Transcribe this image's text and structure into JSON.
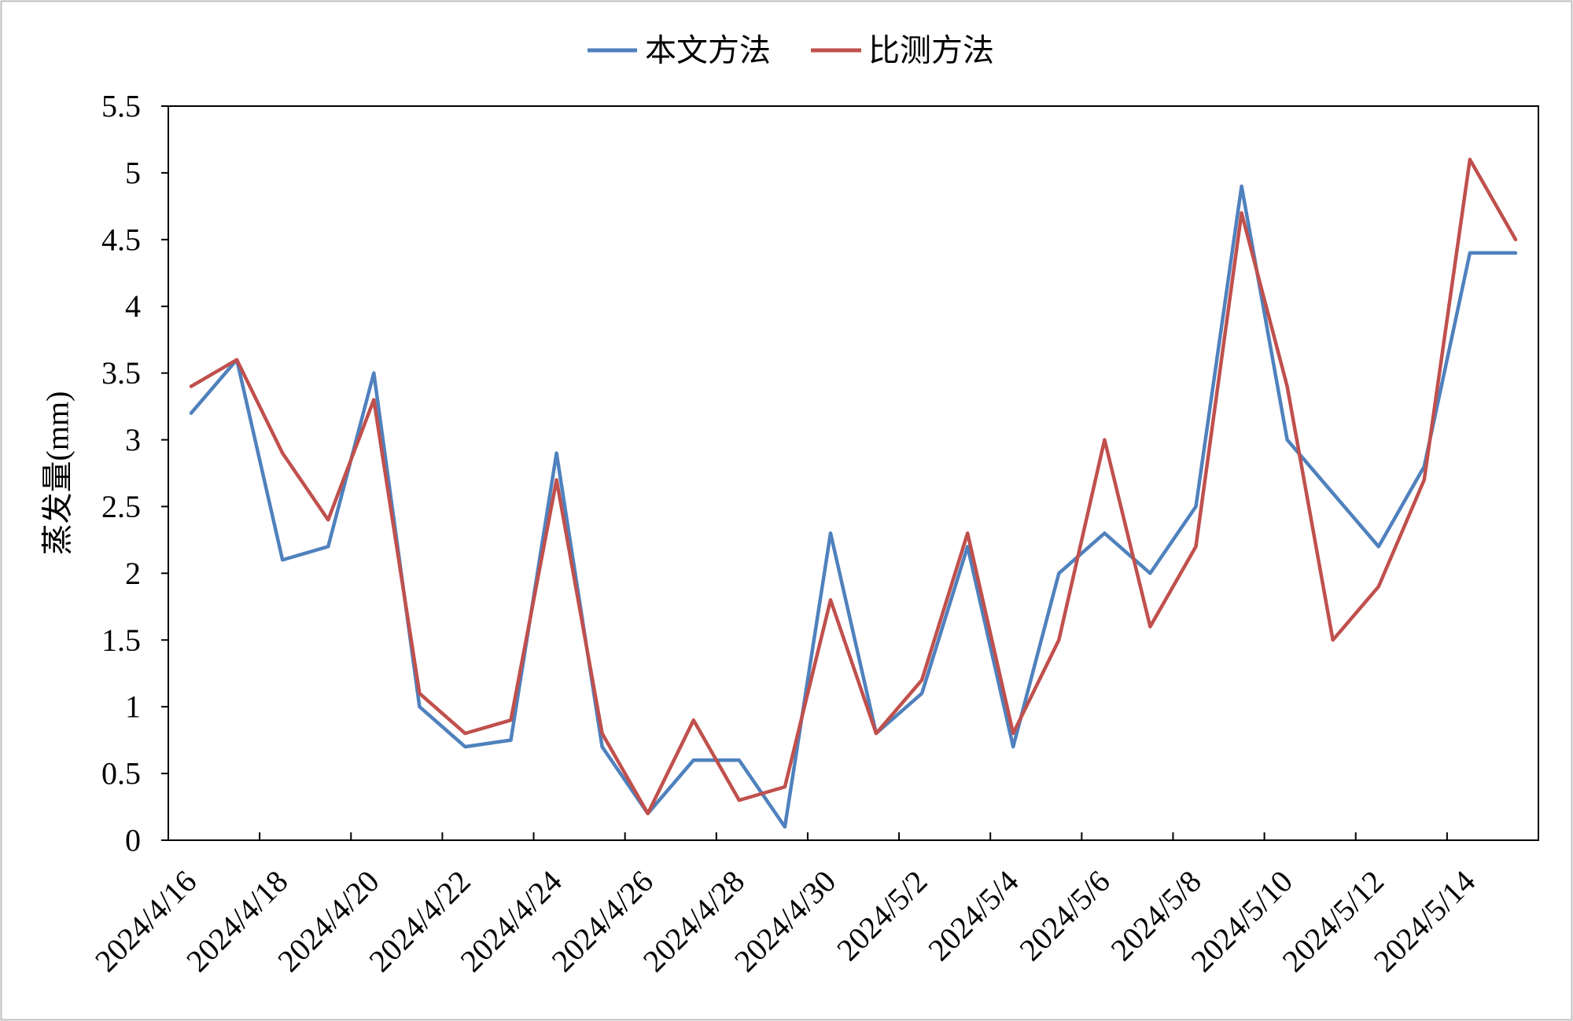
{
  "chart_data": {
    "type": "line",
    "ylabel": "蒸发量(mm)",
    "ylim": [
      0,
      5.5
    ],
    "yticks": [
      0,
      0.5,
      1,
      1.5,
      2,
      2.5,
      3,
      3.5,
      4,
      4.5,
      5,
      5.5
    ],
    "grid": false,
    "legend_position": "top",
    "x": [
      "2024/4/16",
      "2024/4/17",
      "2024/4/18",
      "2024/4/19",
      "2024/4/20",
      "2024/4/21",
      "2024/4/22",
      "2024/4/23",
      "2024/4/24",
      "2024/4/25",
      "2024/4/26",
      "2024/4/27",
      "2024/4/28",
      "2024/4/29",
      "2024/4/30",
      "2024/5/1",
      "2024/5/2",
      "2024/5/3",
      "2024/5/4",
      "2024/5/5",
      "2024/5/6",
      "2024/5/7",
      "2024/5/8",
      "2024/5/9",
      "2024/5/10",
      "2024/5/11",
      "2024/5/12",
      "2024/5/13",
      "2024/5/14",
      "2024/5/15"
    ],
    "xtick_labels": [
      "2024/4/16",
      "2024/4/18",
      "2024/4/20",
      "2024/4/22",
      "2024/4/24",
      "2024/4/26",
      "2024/4/28",
      "2024/4/30",
      "2024/5/2",
      "2024/5/4",
      "2024/5/6",
      "2024/5/8",
      "2024/5/10",
      "2024/5/12",
      "2024/5/14"
    ],
    "series": [
      {
        "name": "本文方法",
        "color": "#4F81BD",
        "values": [
          3.2,
          3.6,
          2.1,
          2.2,
          3.5,
          1.0,
          0.7,
          0.75,
          2.9,
          0.7,
          0.2,
          0.6,
          0.6,
          0.1,
          2.3,
          0.8,
          1.1,
          2.2,
          0.7,
          2.0,
          2.3,
          2.0,
          2.5,
          4.9,
          3.0,
          2.6,
          2.2,
          2.8,
          4.4,
          4.4
        ]
      },
      {
        "name": "比测方法",
        "color": "#C0504D",
        "values": [
          3.4,
          3.6,
          2.9,
          2.4,
          3.3,
          1.1,
          0.8,
          0.9,
          2.7,
          0.8,
          0.2,
          0.9,
          0.3,
          0.4,
          1.8,
          0.8,
          1.2,
          2.3,
          0.8,
          1.5,
          3.0,
          1.6,
          2.2,
          4.7,
          3.4,
          1.5,
          1.9,
          2.7,
          5.1,
          4.5
        ]
      }
    ]
  }
}
